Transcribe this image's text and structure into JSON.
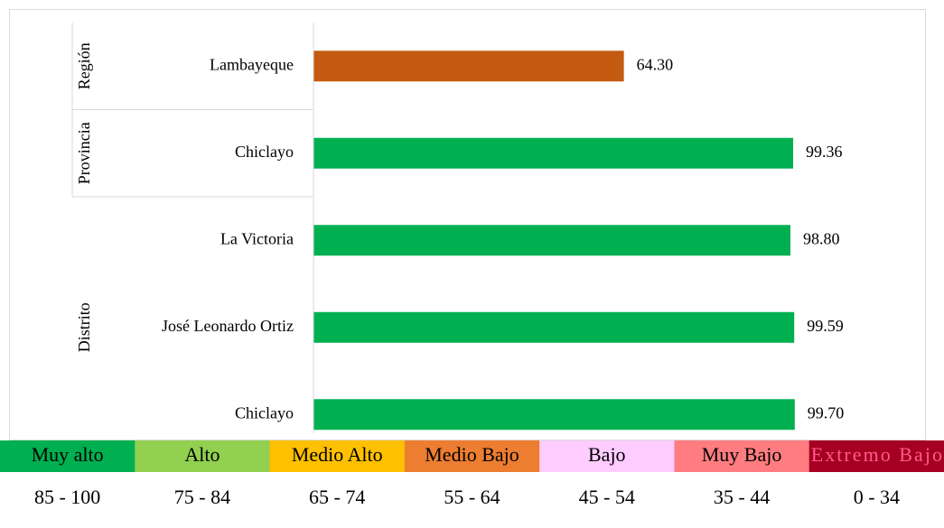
{
  "chart_data": {
    "type": "bar",
    "orientation": "horizontal",
    "groups": [
      {
        "name": "Región",
        "categories": [
          "Lambayeque"
        ],
        "values": [
          64.3
        ],
        "value_labels": [
          "64.30"
        ],
        "color": "#c55a11"
      },
      {
        "name": "Provincia",
        "categories": [
          "Chiclayo"
        ],
        "values": [
          99.36
        ],
        "value_labels": [
          "99.36"
        ],
        "color": "#00b050"
      },
      {
        "name": "Distrito",
        "categories": [
          "La Victoria",
          "José Leonardo Ortiz",
          "Chiclayo"
        ],
        "values": [
          98.8,
          99.59,
          99.7
        ],
        "value_labels": [
          "98.80",
          "99.59",
          "99.70"
        ],
        "color": "#00b050"
      }
    ],
    "xlim": [
      0,
      125
    ],
    "legend_scale": [
      {
        "label": "Muy alto",
        "range": "85 - 100",
        "color": "#00b050",
        "text_color": "#000000"
      },
      {
        "label": "Alto",
        "range": "75 - 84",
        "color": "#92d050",
        "text_color": "#000000"
      },
      {
        "label": "Medio Alto",
        "range": "65 - 74",
        "color": "#ffc000",
        "text_color": "#000000"
      },
      {
        "label": "Medio Bajo",
        "range": "55 - 64",
        "color": "#ed7d31",
        "text_color": "#000000"
      },
      {
        "label": "Bajo",
        "range": "45 - 54",
        "color": "#ffccff",
        "text_color": "#000000"
      },
      {
        "label": "Muy Bajo",
        "range": "35 - 44",
        "color": "#ff7c80",
        "text_color": "#000000"
      },
      {
        "label": "Extremo Bajo",
        "range": "0 - 34",
        "color": "#a50021",
        "text_color": "#ff5b8c"
      }
    ]
  }
}
